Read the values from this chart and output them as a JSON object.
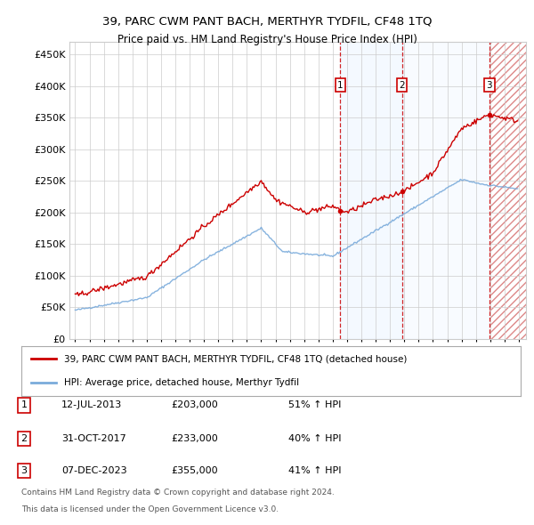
{
  "title": "39, PARC CWM PANT BACH, MERTHYR TYDFIL, CF48 1TQ",
  "subtitle": "Price paid vs. HM Land Registry's House Price Index (HPI)",
  "ylim": [
    0,
    470000
  ],
  "yticks": [
    0,
    50000,
    100000,
    150000,
    200000,
    250000,
    300000,
    350000,
    400000,
    450000
  ],
  "xlim_start": 1994.6,
  "xlim_end": 2026.5,
  "legend_line1": "39, PARC CWM PANT BACH, MERTHYR TYDFIL, CF48 1TQ (detached house)",
  "legend_line2": "HPI: Average price, detached house, Merthyr Tydfil",
  "line_color_property": "#cc0000",
  "line_color_hpi": "#7aabdb",
  "sale1_date": "12-JUL-2013",
  "sale1_price": 203000,
  "sale1_pct": "51% ↑ HPI",
  "sale1_x": 2013.53,
  "sale2_date": "31-OCT-2017",
  "sale2_price": 233000,
  "sale2_pct": "40% ↑ HPI",
  "sale2_x": 2017.83,
  "sale3_date": "07-DEC-2023",
  "sale3_price": 355000,
  "sale3_pct": "41% ↑ HPI",
  "sale3_x": 2023.93,
  "footer_line1": "Contains HM Land Registry data © Crown copyright and database right 2024.",
  "footer_line2": "This data is licensed under the Open Government Licence v3.0.",
  "shade_color_between12": "#ddeeff",
  "shade_color_between23": "#ddeeff",
  "hatch_color": "#cc0000"
}
